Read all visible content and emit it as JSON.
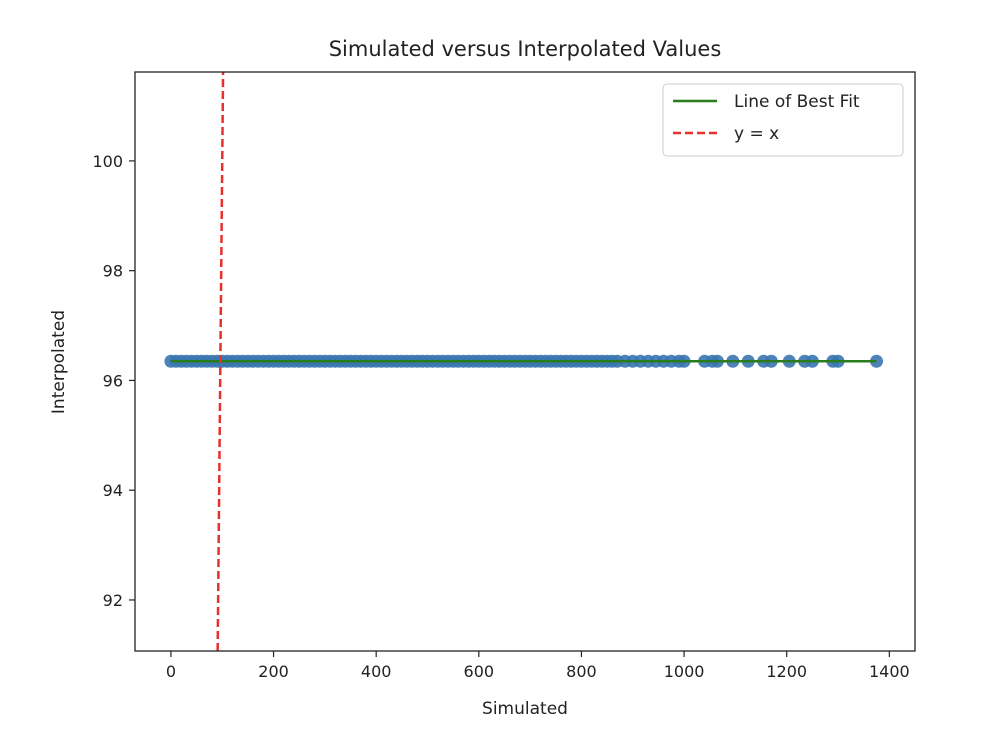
{
  "chart_data": {
    "type": "scatter",
    "title": "Simulated versus Interpolated Values",
    "xlabel": "Simulated",
    "ylabel": "Interpolated",
    "xlim": [
      -70,
      1450
    ],
    "ylim": [
      91.07,
      101.62
    ],
    "xticks": [
      0,
      200,
      400,
      600,
      800,
      1000,
      1200,
      1400
    ],
    "yticks": [
      92,
      94,
      96,
      98,
      100
    ],
    "grid": false,
    "legend": {
      "placement": "top-right",
      "entries": [
        "Line of Best Fit",
        "y = x"
      ]
    },
    "colors": {
      "points": "#3a75b0",
      "fit": "#2a7d1c",
      "identity": "#e8302a"
    },
    "scatter": {
      "y_constant": 96.35,
      "x": [
        0,
        10,
        20,
        30,
        40,
        50,
        60,
        70,
        80,
        90,
        100,
        110,
        120,
        130,
        140,
        150,
        160,
        170,
        180,
        190,
        200,
        210,
        220,
        230,
        240,
        250,
        260,
        270,
        280,
        290,
        300,
        310,
        320,
        330,
        340,
        350,
        360,
        370,
        380,
        390,
        400,
        410,
        420,
        430,
        440,
        450,
        460,
        470,
        480,
        490,
        500,
        510,
        520,
        530,
        540,
        550,
        560,
        570,
        580,
        590,
        600,
        610,
        620,
        630,
        640,
        650,
        660,
        670,
        680,
        690,
        700,
        710,
        720,
        730,
        740,
        750,
        760,
        770,
        780,
        790,
        800,
        810,
        820,
        830,
        840,
        850,
        860,
        870,
        885,
        900,
        915,
        930,
        945,
        960,
        975,
        990,
        1000,
        1040,
        1055,
        1065,
        1095,
        1125,
        1155,
        1170,
        1205,
        1235,
        1250,
        1290,
        1300,
        1375
      ]
    },
    "best_fit": {
      "x": [
        0,
        1375
      ],
      "y": [
        96.35,
        96.35
      ]
    },
    "identity_line": {
      "x": [
        91.07,
        101.62
      ],
      "y": [
        91.07,
        101.62
      ]
    }
  }
}
